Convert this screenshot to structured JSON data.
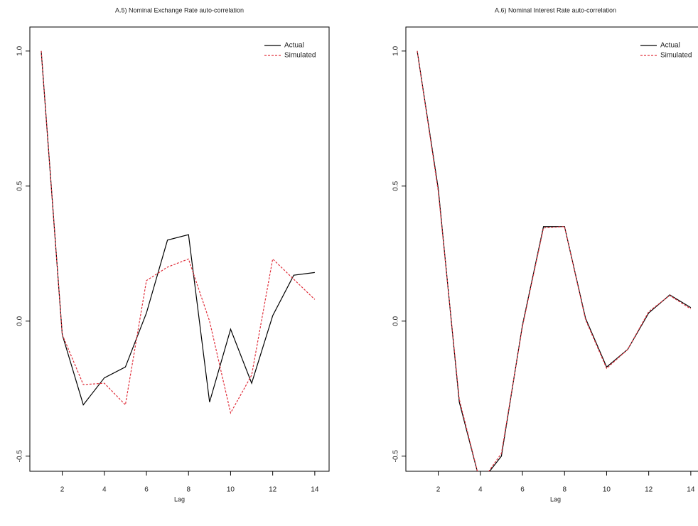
{
  "chart_data": [
    {
      "type": "line",
      "title": "A.5) Nominal Exchange Rate auto-correlation",
      "x_label": "Lag",
      "x": [
        1,
        2,
        3,
        4,
        5,
        6,
        7,
        8,
        9,
        10,
        11,
        12,
        13,
        14
      ],
      "series": [
        {
          "name": "Actual",
          "color": "#000000",
          "dash": "solid",
          "values": [
            1.0,
            -0.05,
            -0.31,
            -0.21,
            -0.17,
            0.03,
            0.3,
            0.32,
            -0.3,
            -0.03,
            -0.23,
            0.02,
            0.17,
            0.18
          ]
        },
        {
          "name": "Simulated",
          "color": "#e0303c",
          "dash": "dashed",
          "values": [
            1.0,
            -0.05,
            -0.235,
            -0.23,
            -0.31,
            0.15,
            0.2,
            0.23,
            0.0,
            -0.34,
            -0.2,
            0.23,
            0.155,
            0.08
          ]
        }
      ],
      "xlim": [
        0.46,
        14.68
      ],
      "ylim": [
        -0.556,
        1.089
      ],
      "xticks": [
        2,
        4,
        6,
        8,
        10,
        12,
        14
      ],
      "yticks": [
        {
          "value": -0.5,
          "label": "-0.5"
        },
        {
          "value": 0,
          "label": "0.0"
        },
        0.5,
        {
          "value": 1,
          "label": "1.0"
        }
      ],
      "legend": "top-right",
      "grid": false
    },
    {
      "type": "line",
      "title": "A.6) Nominal Interest Rate auto-correlation",
      "x_label": "Lag",
      "x": [
        1,
        2,
        3,
        4,
        5,
        6,
        7,
        8,
        9,
        10,
        11,
        12,
        13,
        14
      ],
      "series": [
        {
          "name": "Actual",
          "color": "#000000",
          "dash": "solid",
          "values": [
            1.0,
            0.49,
            -0.3,
            -0.6,
            -0.5,
            -0.015,
            0.35,
            0.35,
            0.01,
            -0.17,
            -0.105,
            0.03,
            0.097,
            0.05
          ]
        },
        {
          "name": "Simulated",
          "color": "#e0303c",
          "dash": "dashed",
          "values": [
            1.0,
            0.48,
            -0.29,
            -0.6,
            -0.49,
            -0.02,
            0.345,
            0.35,
            0.005,
            -0.175,
            -0.105,
            0.035,
            0.095,
            0.045
          ]
        }
      ],
      "xlim": [
        0.46,
        14.68
      ],
      "ylim": [
        -0.556,
        1.089
      ],
      "xticks": [
        2,
        4,
        6,
        8,
        10,
        12,
        14
      ],
      "yticks": [
        {
          "value": -0.5,
          "label": "-0.5"
        },
        {
          "value": 0,
          "label": "0.0"
        },
        0.5,
        {
          "value": 1,
          "label": "1.0"
        }
      ],
      "legend": "top-right",
      "grid": false
    }
  ]
}
